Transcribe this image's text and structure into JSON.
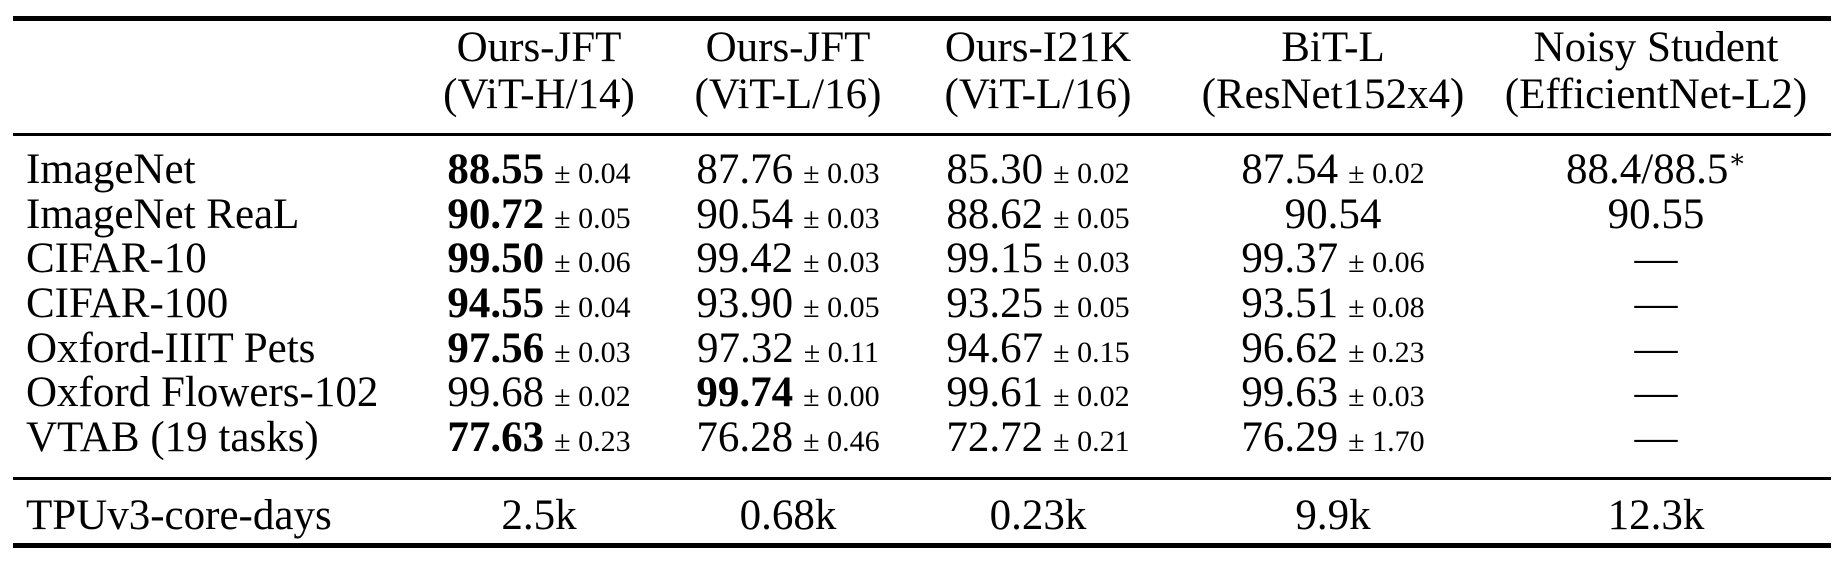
{
  "colors": {
    "background": "#ffffff",
    "text": "#000000",
    "rule": "#000000"
  },
  "table": {
    "columns": [
      {
        "line1": "Ours-JFT",
        "line2": "(ViT-H/14)"
      },
      {
        "line1": "Ours-JFT",
        "line2": "(ViT-L/16)"
      },
      {
        "line1": "Ours-I21K",
        "line2": "(ViT-L/16)"
      },
      {
        "line1": "BiT-L",
        "line2": "(ResNet152x4)"
      },
      {
        "line1": "Noisy Student",
        "line2": "(EfficientNet-L2)"
      }
    ],
    "rows": [
      {
        "label": "ImageNet",
        "cells": [
          {
            "main": "88.55",
            "err": "± 0.04",
            "bold": true
          },
          {
            "main": "87.76",
            "err": "± 0.03"
          },
          {
            "main": "85.30",
            "err": "± 0.02"
          },
          {
            "main": "87.54",
            "err": "± 0.02"
          },
          {
            "main": "88.4/88.5",
            "sup": "∗"
          }
        ]
      },
      {
        "label": "ImageNet ReaL",
        "cells": [
          {
            "main": "90.72",
            "err": "± 0.05",
            "bold": true
          },
          {
            "main": "90.54",
            "err": "± 0.03"
          },
          {
            "main": "88.62",
            "err": "± 0.05"
          },
          {
            "main": "90.54"
          },
          {
            "main": "90.55"
          }
        ]
      },
      {
        "label": "CIFAR-10",
        "cells": [
          {
            "main": "99.50",
            "err": "± 0.06",
            "bold": true
          },
          {
            "main": "99.42",
            "err": "± 0.03"
          },
          {
            "main": "99.15",
            "err": "± 0.03"
          },
          {
            "main": "99.37",
            "err": "± 0.06"
          },
          {
            "main": "—"
          }
        ]
      },
      {
        "label": "CIFAR-100",
        "cells": [
          {
            "main": "94.55",
            "err": "± 0.04",
            "bold": true
          },
          {
            "main": "93.90",
            "err": "± 0.05"
          },
          {
            "main": "93.25",
            "err": "± 0.05"
          },
          {
            "main": "93.51",
            "err": "± 0.08"
          },
          {
            "main": "—"
          }
        ]
      },
      {
        "label": "Oxford-IIIT Pets",
        "cells": [
          {
            "main": "97.56",
            "err": "± 0.03",
            "bold": true
          },
          {
            "main": "97.32",
            "err": "± 0.11"
          },
          {
            "main": "94.67",
            "err": "± 0.15"
          },
          {
            "main": "96.62",
            "err": "± 0.23"
          },
          {
            "main": "—"
          }
        ]
      },
      {
        "label": "Oxford Flowers-102",
        "cells": [
          {
            "main": "99.68",
            "err": "± 0.02"
          },
          {
            "main": "99.74",
            "err": "± 0.00",
            "bold": true
          },
          {
            "main": "99.61",
            "err": "± 0.02"
          },
          {
            "main": "99.63",
            "err": "± 0.03"
          },
          {
            "main": "—"
          }
        ]
      },
      {
        "label": "VTAB (19 tasks)",
        "cells": [
          {
            "main": "77.63",
            "err": "± 0.23",
            "bold": true
          },
          {
            "main": "76.28",
            "err": "± 0.46"
          },
          {
            "main": "72.72",
            "err": "± 0.21"
          },
          {
            "main": "76.29",
            "err": "± 1.70"
          },
          {
            "main": "—"
          }
        ]
      }
    ],
    "footer": {
      "label": "TPUv3-core-days",
      "values": [
        "2.5k",
        "0.68k",
        "0.23k",
        "9.9k",
        "12.3k"
      ]
    }
  }
}
